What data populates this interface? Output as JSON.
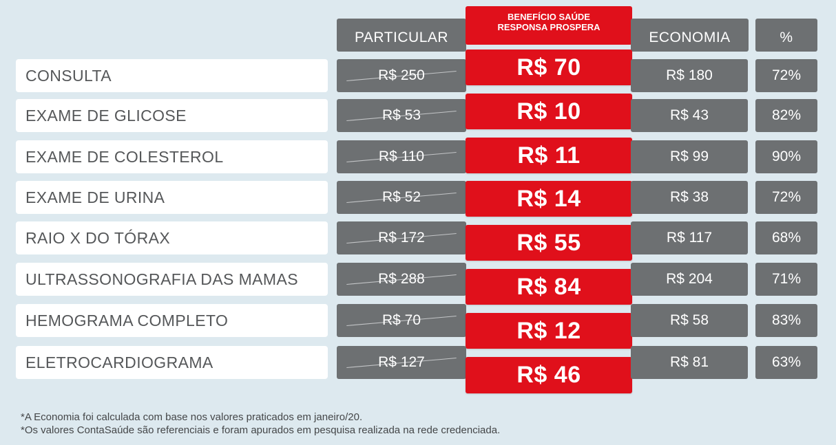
{
  "headers": {
    "particular": "PARTICULAR",
    "beneficio_line1": "BENEFÍCIO SAÚDE",
    "beneficio_line2": "RESPONSA PROSPERA",
    "economia": "ECONOMIA",
    "percent": "%"
  },
  "rows": [
    {
      "label": "CONSULTA",
      "particular": "R$ 250",
      "beneficio": "R$ 70",
      "economia": "R$ 180",
      "percent": "72%"
    },
    {
      "label": "EXAME DE GLICOSE",
      "particular": "R$ 53",
      "beneficio": "R$ 10",
      "economia": "R$ 43",
      "percent": "82%"
    },
    {
      "label": "EXAME DE COLESTEROL",
      "particular": "R$ 110",
      "beneficio": "R$ 11",
      "economia": "R$ 99",
      "percent": "90%"
    },
    {
      "label": "EXAME DE URINA",
      "particular": "R$ 52",
      "beneficio": "R$ 14",
      "economia": "R$ 38",
      "percent": "72%"
    },
    {
      "label": "RAIO X DO TÓRAX",
      "particular": "R$ 172",
      "beneficio": "R$ 55",
      "economia": "R$ 117",
      "percent": "68%"
    },
    {
      "label": "ULTRASSONOGRAFIA DAS MAMAS",
      "particular": "R$ 288",
      "beneficio": "R$ 84",
      "economia": "R$ 204",
      "percent": "71%"
    },
    {
      "label": "HEMOGRAMA COMPLETO",
      "particular": "R$ 70",
      "beneficio": "R$ 12",
      "economia": "R$ 58",
      "percent": "83%"
    },
    {
      "label": "ELETROCARDIOGRAMA",
      "particular": "R$ 127",
      "beneficio": "R$ 46",
      "economia": "R$ 81",
      "percent": "63%"
    }
  ],
  "footnotes": {
    "line1": "*A Economia foi calculada com base nos valores praticados em janeiro/20.",
    "line2": "*Os valores ContaSaúde são referenciais e foram apurados em pesquisa realizada na rede credenciada."
  },
  "colors": {
    "background": "#dde9ef",
    "gray_cell": "#6d7072",
    "accent_red": "#e0101b",
    "label_text": "#555759"
  }
}
